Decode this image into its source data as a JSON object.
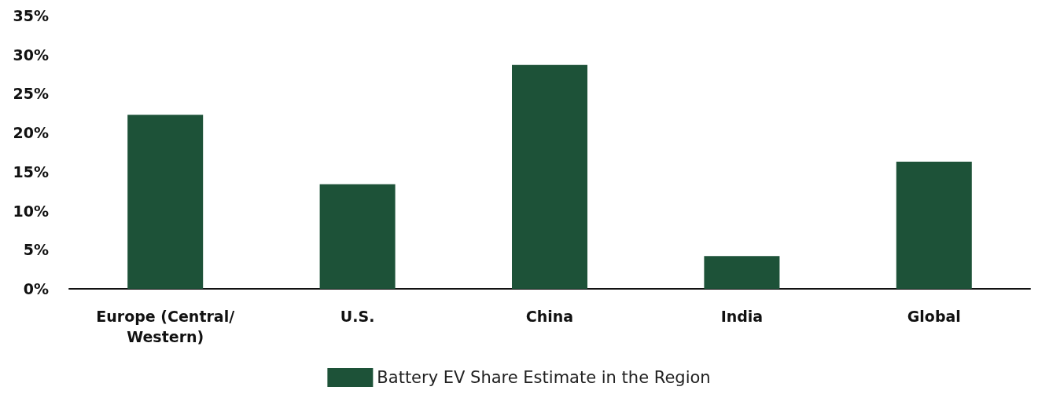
{
  "chart_data": {
    "type": "bar",
    "categories": [
      "Europe (Central/Western)",
      "U.S.",
      "China",
      "India",
      "Global"
    ],
    "series": [
      {
        "name": "Battery EV Share Estimate in the Region",
        "color": "#1d5238",
        "values": [
          22.3,
          13.4,
          28.7,
          4.2,
          16.3
        ]
      }
    ],
    "ylim": [
      0,
      35
    ],
    "yticks": [
      {
        "value": 0,
        "label": "0%"
      },
      {
        "value": 5,
        "label": "5%"
      },
      {
        "value": 10,
        "label": "10%"
      },
      {
        "value": 15,
        "label": "15%"
      },
      {
        "value": 20,
        "label": "20%"
      },
      {
        "value": 25,
        "label": "25%"
      },
      {
        "value": 30,
        "label": "30%"
      },
      {
        "value": 35,
        "label": "35%"
      }
    ],
    "grid": false,
    "legend": "bottom"
  }
}
